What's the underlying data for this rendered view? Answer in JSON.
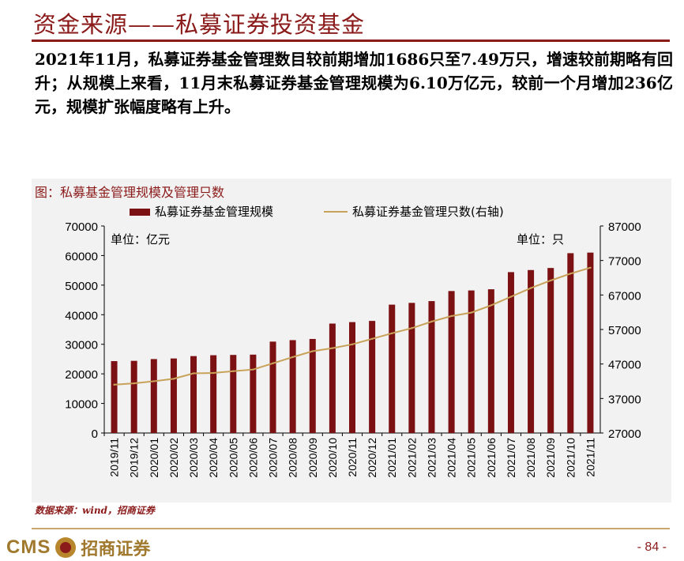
{
  "page": {
    "title": "资金来源——私募证券投资基金",
    "summary": "2021年11月，私募证券基金管理数目较前期增加1686只至7.49万只，增速较前期略有回升；从规模上来看，11月末私募证券基金管理规模为6.10万亿元，较前一个月增加236亿元，规模扩张幅度略有上升。",
    "source_note": "数据来源：wind，招商证券",
    "page_number": "- 84 -",
    "logo_text_en": "CMS",
    "logo_text_cn": "招商证券"
  },
  "colors": {
    "accent": "#8B1A1A",
    "bar": "#7B1113",
    "line": "#C9A25A",
    "panel": "#F2F2F2",
    "gold": "#A0792E"
  },
  "chart_data": {
    "type": "bar",
    "title": "图：私募基金管理规模及管理只数",
    "categories": [
      "2019/11",
      "2019/12",
      "2020/01",
      "2020/02",
      "2020/03",
      "2020/04",
      "2020/05",
      "2020/06",
      "2020/07",
      "2020/08",
      "2020/09",
      "2020/10",
      "2020/11",
      "2020/12",
      "2021/01",
      "2021/02",
      "2021/03",
      "2021/04",
      "2021/05",
      "2021/06",
      "2021/07",
      "2021/08",
      "2021/09",
      "2021/10",
      "2021/11"
    ],
    "series": [
      {
        "name": "私募证券基金管理规模",
        "type": "bar",
        "axis": "left",
        "values": [
          24300,
          24400,
          25000,
          25200,
          26000,
          26300,
          26400,
          26500,
          30900,
          31400,
          31800,
          37000,
          37500,
          37900,
          43400,
          44000,
          44600,
          48000,
          48200,
          48600,
          54400,
          55100,
          55800,
          60800,
          61000
        ]
      },
      {
        "name": "私募证券基金管理只数(右轴)",
        "type": "line",
        "axis": "right",
        "values": [
          41000,
          41400,
          42000,
          42700,
          44300,
          44400,
          44900,
          45400,
          47200,
          49000,
          50700,
          51600,
          52700,
          54300,
          55900,
          57400,
          59300,
          60900,
          61900,
          64000,
          66500,
          69000,
          71200,
          73200,
          74900
        ]
      }
    ],
    "y_left": {
      "unit_label": "单位：亿元",
      "min": 0,
      "max": 70000,
      "ticks": [
        0,
        10000,
        20000,
        30000,
        40000,
        50000,
        60000,
        70000
      ]
    },
    "y_right": {
      "unit_label": "单位：只",
      "min": 27000,
      "max": 87000,
      "ticks": [
        27000,
        37000,
        47000,
        57000,
        67000,
        77000,
        87000
      ]
    },
    "legend_position": "top",
    "grid": false
  }
}
